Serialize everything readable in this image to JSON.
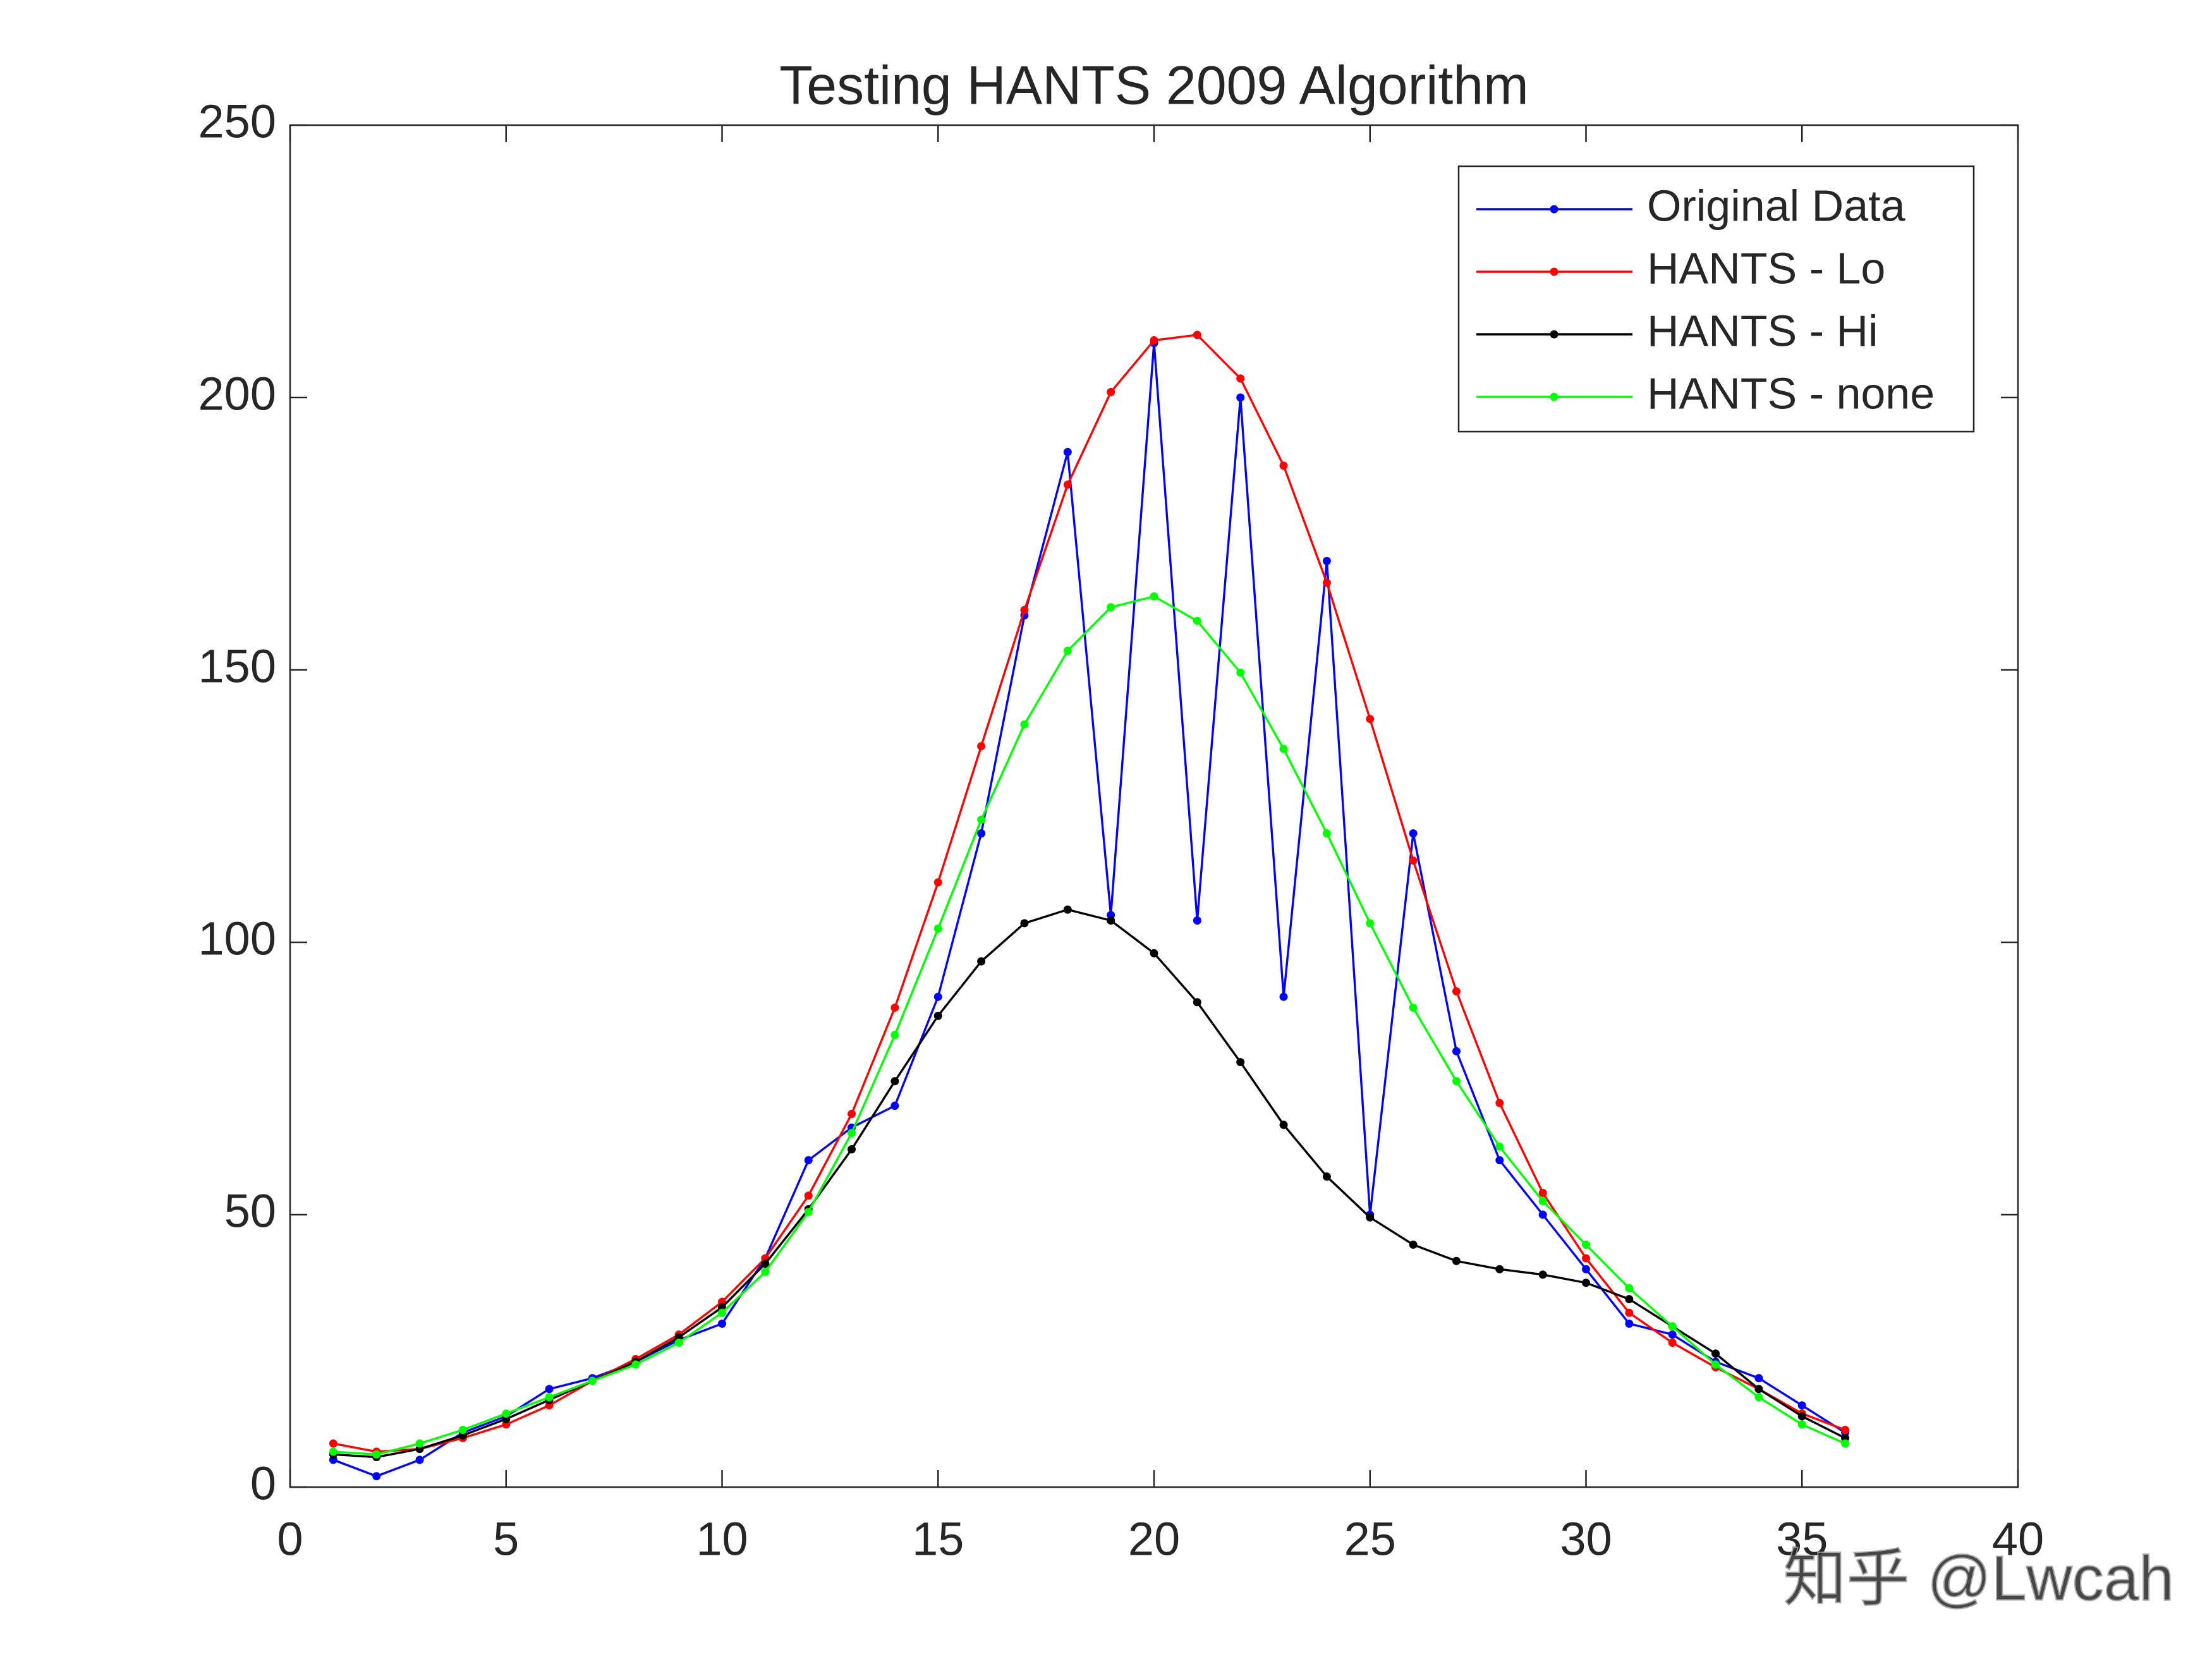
{
  "chart_data": {
    "type": "line",
    "title": "Testing HANTS 2009 Algorithm",
    "x": [
      1,
      2,
      3,
      4,
      5,
      6,
      7,
      8,
      9,
      10,
      11,
      12,
      13,
      14,
      15,
      16,
      17,
      18,
      19,
      20,
      21,
      22,
      23,
      24,
      25,
      26,
      27,
      28,
      29,
      30,
      31,
      32,
      33,
      34,
      35,
      36
    ],
    "series": [
      {
        "name": "Original Data",
        "color": "#0000ff",
        "values": [
          5,
          2,
          5,
          10,
          13,
          18,
          20,
          23,
          27,
          30,
          42,
          60,
          66,
          70,
          90,
          120,
          160,
          190,
          105,
          210,
          104,
          200,
          90,
          170,
          50,
          120,
          80,
          60,
          50,
          40,
          30,
          28,
          23,
          20,
          15,
          10
        ]
      },
      {
        "name": "HANTS - Lo",
        "color": "#ff0000",
        "values": [
          8,
          6.5,
          7,
          9,
          11.5,
          15,
          19.5,
          23.5,
          28,
          34,
          42,
          53.5,
          68.5,
          88,
          111,
          136,
          161,
          184,
          201,
          210.5,
          211.5,
          203.5,
          187.5,
          166,
          141,
          115,
          91,
          70.5,
          54,
          42,
          32,
          26.5,
          22,
          18,
          13.5,
          10.5
        ]
      },
      {
        "name": "HANTS - Hi",
        "color": "#000000",
        "values": [
          6,
          5.5,
          7,
          9.5,
          12.5,
          16,
          19.5,
          23,
          27.5,
          33,
          41,
          51,
          62,
          74.5,
          86.5,
          96.5,
          103.5,
          106,
          104,
          98,
          89,
          78,
          66.5,
          57,
          49.5,
          44.5,
          41.5,
          40,
          39,
          37.5,
          34.5,
          29.5,
          24.5,
          18,
          13,
          9
        ]
      },
      {
        "name": "HANTS - none",
        "color": "#00ff00",
        "values": [
          6.5,
          6,
          8,
          10.5,
          13.5,
          16.5,
          19.5,
          22.5,
          26.5,
          32,
          39.5,
          50.5,
          65,
          83,
          102.5,
          122.5,
          140,
          153.5,
          161.5,
          163.5,
          159,
          149.5,
          135.5,
          120,
          103.5,
          88,
          74.5,
          62.5,
          52.5,
          44.5,
          36.5,
          29.5,
          22.5,
          16.5,
          11.5,
          8
        ]
      }
    ],
    "xlim": [
      0,
      40
    ],
    "xticks": [
      0,
      5,
      10,
      15,
      20,
      25,
      30,
      35,
      40
    ],
    "ylim": [
      0,
      250
    ],
    "yticks": [
      0,
      50,
      100,
      150,
      200,
      250
    ],
    "legend": "upper right",
    "watermark": "知乎 @Lwcah"
  }
}
